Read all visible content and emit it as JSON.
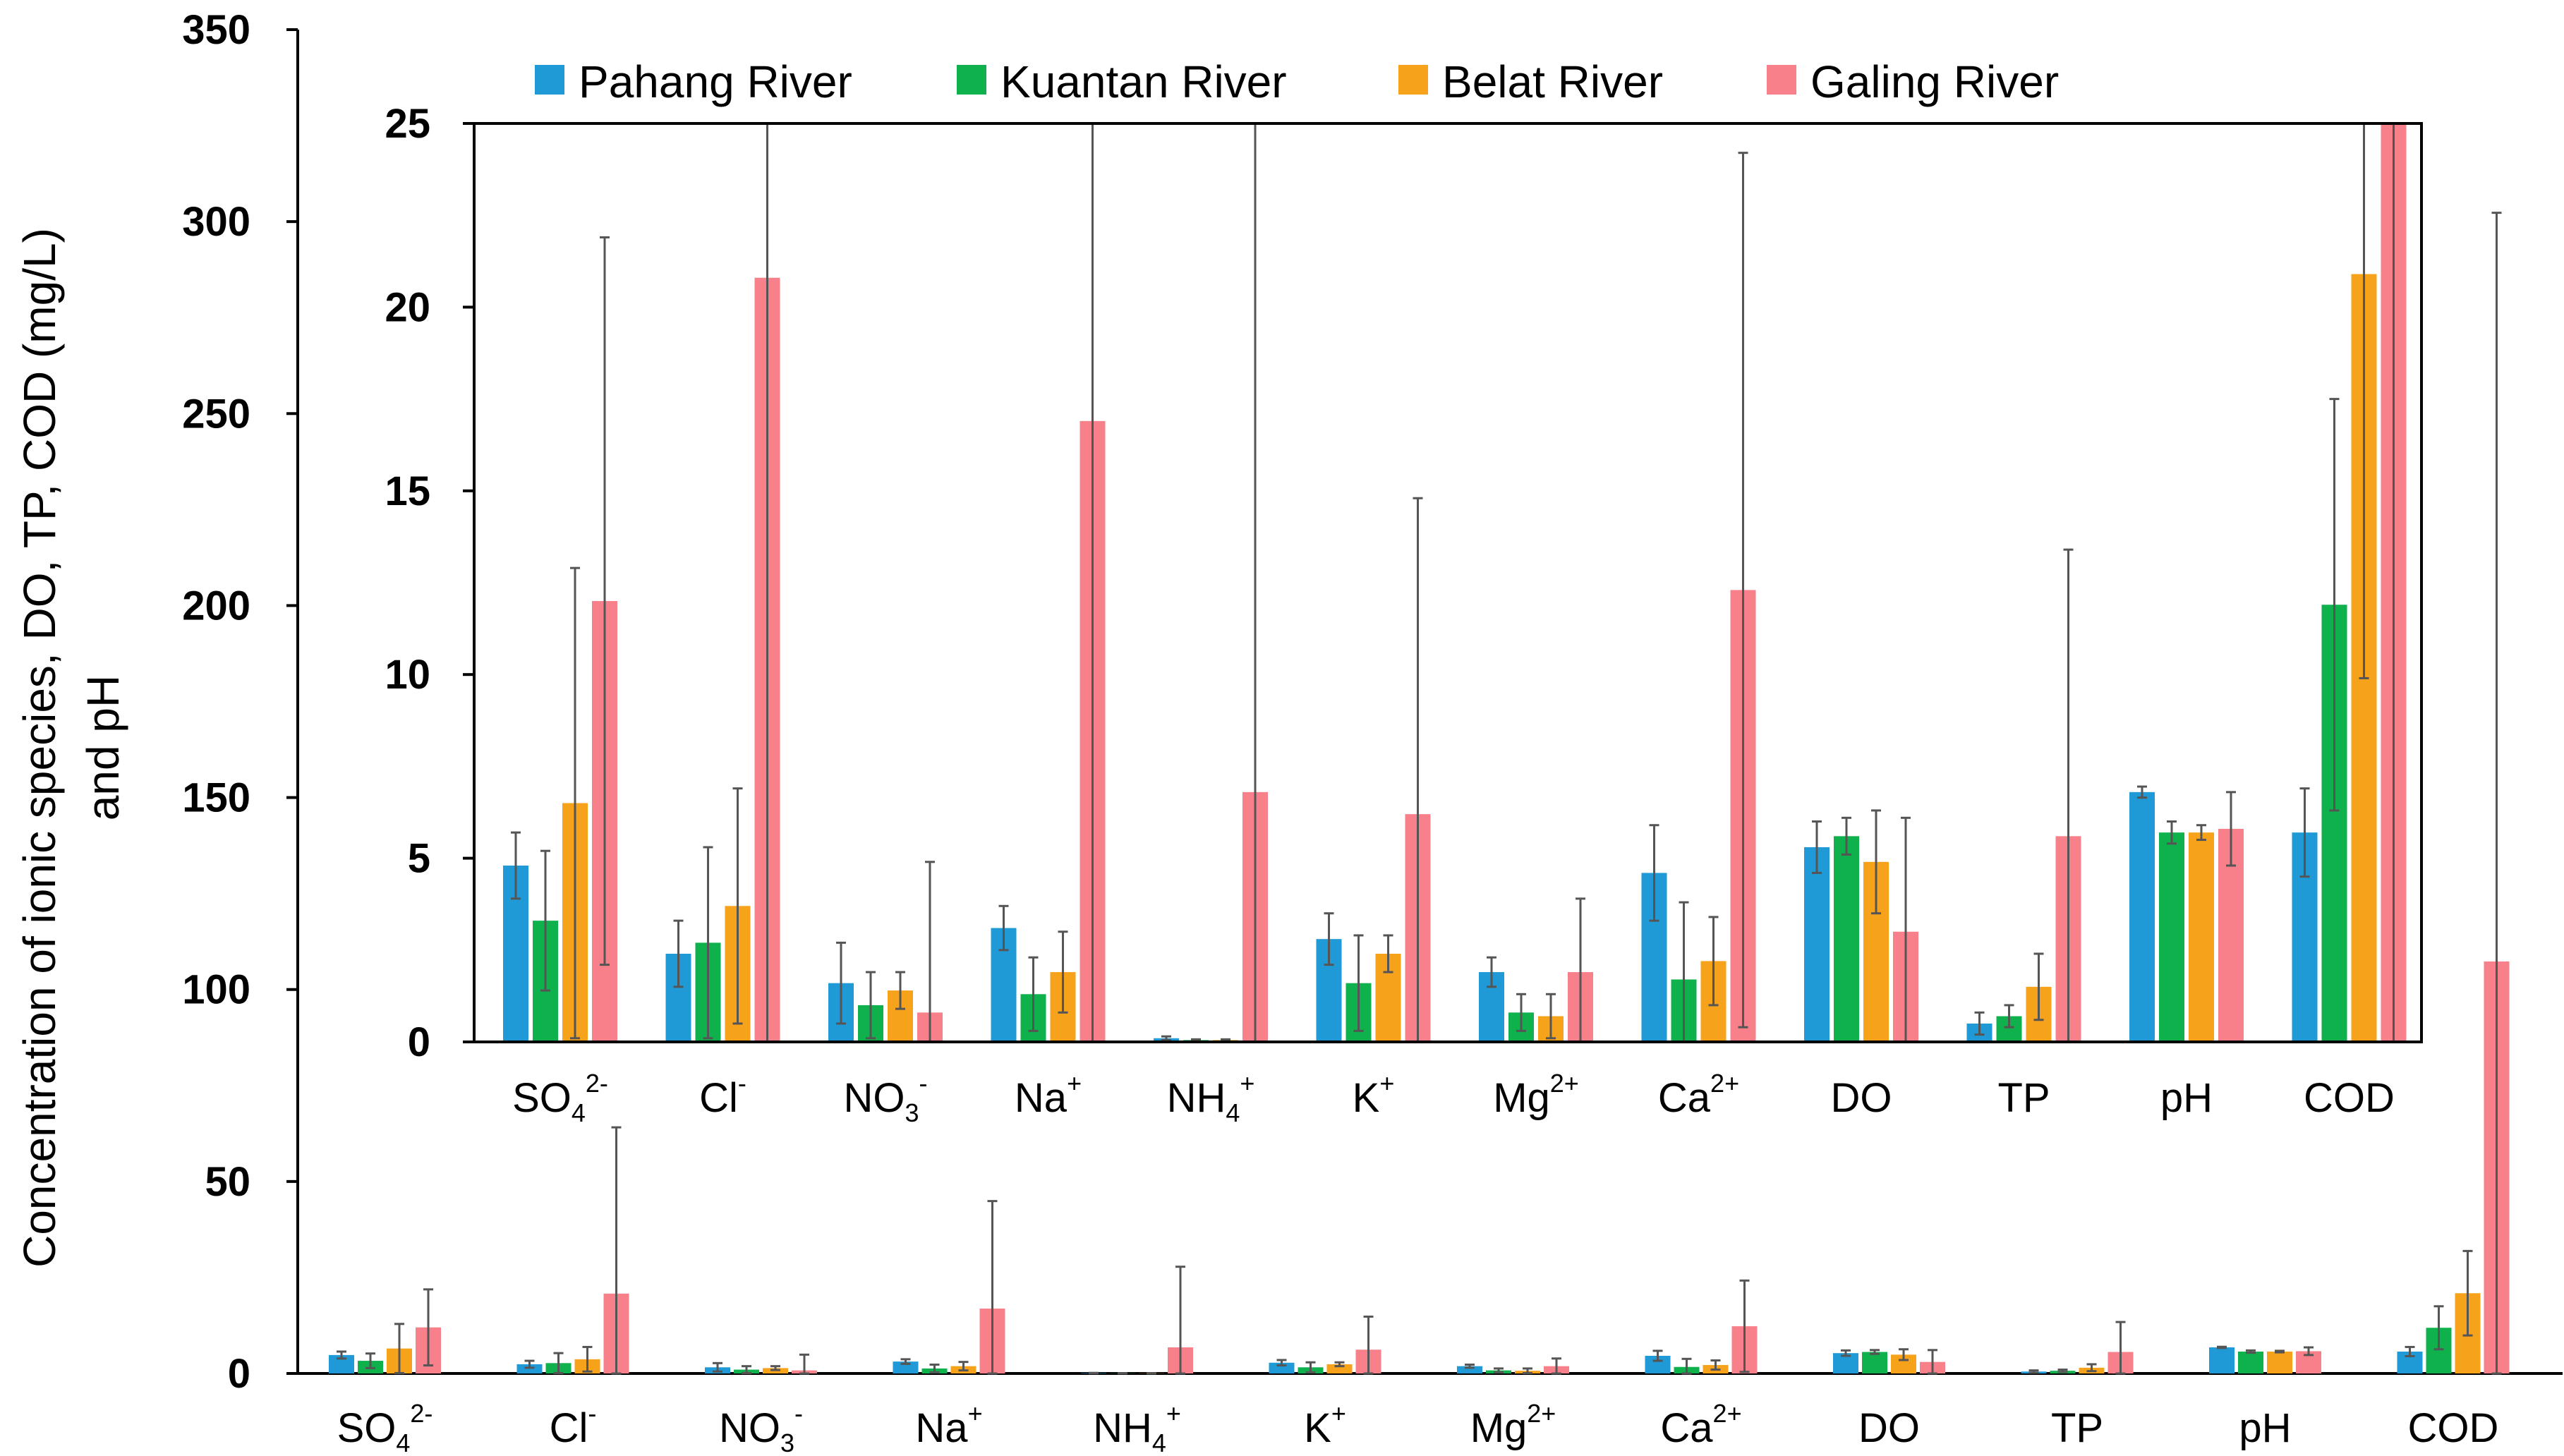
{
  "chart_data": [
    {
      "id": "main",
      "type": "bar",
      "ylabel_line1": "Concentration of ionic species, DO, TP, COD (mg/L)",
      "ylabel_line2": "and pH",
      "ylim": [
        0,
        350
      ],
      "yticks": [
        "0",
        "50",
        "100",
        "150",
        "200",
        "250",
        "300",
        "350"
      ],
      "tick_values": [
        0,
        50,
        100,
        150,
        200,
        250,
        300,
        350
      ],
      "categories": [
        {
          "base": "SO",
          "sub": "4",
          "sup": "2-"
        },
        {
          "base": "Cl",
          "sub": "",
          "sup": "-"
        },
        {
          "base": "NO",
          "sub": "3",
          "sup": "-"
        },
        {
          "base": "Na",
          "sub": "",
          "sup": "+"
        },
        {
          "base": "NH",
          "sub": "4",
          "sup": "+"
        },
        {
          "base": "K",
          "sub": "",
          "sup": "+"
        },
        {
          "base": "Mg",
          "sub": "",
          "sup": "2+"
        },
        {
          "base": "Ca",
          "sub": "",
          "sup": "2+"
        },
        {
          "base": "DO",
          "sub": "",
          "sup": ""
        },
        {
          "base": "TP",
          "sub": "",
          "sup": ""
        },
        {
          "base": "pH",
          "sub": "",
          "sup": ""
        },
        {
          "base": "COD",
          "sub": "",
          "sup": ""
        }
      ],
      "series": [
        {
          "name": "Pahang River",
          "color": "#1f9ad6",
          "values": [
            4.8,
            2.4,
            1.6,
            3.1,
            0.1,
            2.8,
            1.9,
            4.6,
            5.3,
            0.5,
            6.8,
            5.7
          ],
          "errors": [
            0.9,
            0.9,
            1.1,
            0.6,
            0.05,
            0.7,
            0.4,
            1.3,
            0.7,
            0.3,
            0.15,
            1.2
          ]
        },
        {
          "name": "Kuantan River",
          "color": "#0fb14c",
          "values": [
            3.3,
            2.7,
            1.0,
            1.3,
            0.05,
            1.6,
            0.8,
            1.7,
            5.6,
            0.7,
            5.7,
            11.9
          ],
          "errors": [
            1.9,
            2.6,
            0.9,
            1.0,
            0.02,
            1.3,
            0.5,
            2.1,
            0.5,
            0.3,
            0.3,
            5.6
          ]
        },
        {
          "name": "Belat River",
          "color": "#f7a21b",
          "values": [
            6.5,
            3.7,
            1.4,
            1.9,
            0.05,
            2.4,
            0.7,
            2.2,
            4.9,
            1.5,
            5.7,
            20.9
          ],
          "errors": [
            6.4,
            3.2,
            0.5,
            1.1,
            0.02,
            0.5,
            0.6,
            1.2,
            1.4,
            0.9,
            0.2,
            11.0
          ],
          "note": "no-sort"
        },
        {
          "name": "Galing River",
          "color": "#f7808a",
          "values": [
            12.0,
            20.8,
            0.8,
            16.9,
            6.8,
            6.2,
            1.9,
            12.3,
            3.0,
            5.6,
            5.8,
            107.3
          ],
          "errors": [
            9.9,
            43.3,
            4.1,
            28.0,
            21.0,
            8.6,
            2.0,
            11.9,
            3.1,
            7.8,
            1.0,
            195.0
          ]
        }
      ]
    },
    {
      "id": "inset",
      "type": "bar",
      "ylim": [
        0,
        25
      ],
      "yticks": [
        "0",
        "5",
        "10",
        "15",
        "20",
        "25"
      ],
      "tick_values": [
        0,
        5,
        10,
        15,
        20,
        25
      ],
      "note": "Zoomed view of the same data; bars and error bars clipped at 25"
    }
  ],
  "legend": {
    "items": [
      {
        "label": "Pahang River",
        "color": "#1f9ad6"
      },
      {
        "label": "Kuantan River",
        "color": "#0fb14c"
      },
      {
        "label": "Belat River",
        "color": "#f7a21b"
      },
      {
        "label": "Galing River",
        "color": "#f7808a"
      }
    ]
  }
}
